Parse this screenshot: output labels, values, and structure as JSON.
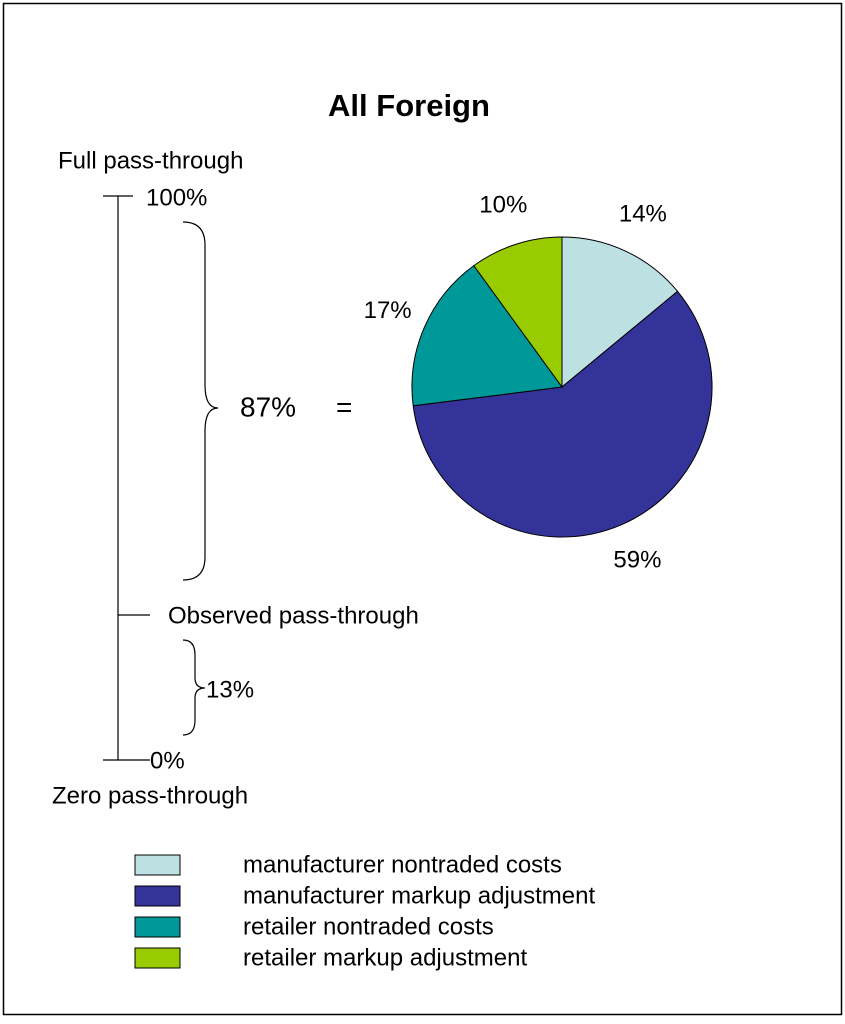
{
  "chart_data": {
    "type": "pie",
    "title": "All Foreign",
    "categories": [
      "manufacturer nontraded costs",
      "manufacturer markup adjustment",
      "retailer nontraded costs",
      "retailer markup adjustment"
    ],
    "values": [
      14,
      59,
      17,
      10
    ],
    "value_labels": [
      "14%",
      "59%",
      "17%",
      "10%"
    ],
    "colors": [
      "#bde0e3",
      "#333399",
      "#009999",
      "#99cc00"
    ],
    "legend": "bottom",
    "annotations": {
      "full": "Full pass-through",
      "top": "100%",
      "share": "87%",
      "equals": "=",
      "observed": "Observed pass-through",
      "remainder": "13%",
      "bottom": "0%",
      "zero": "Zero pass-through"
    }
  }
}
